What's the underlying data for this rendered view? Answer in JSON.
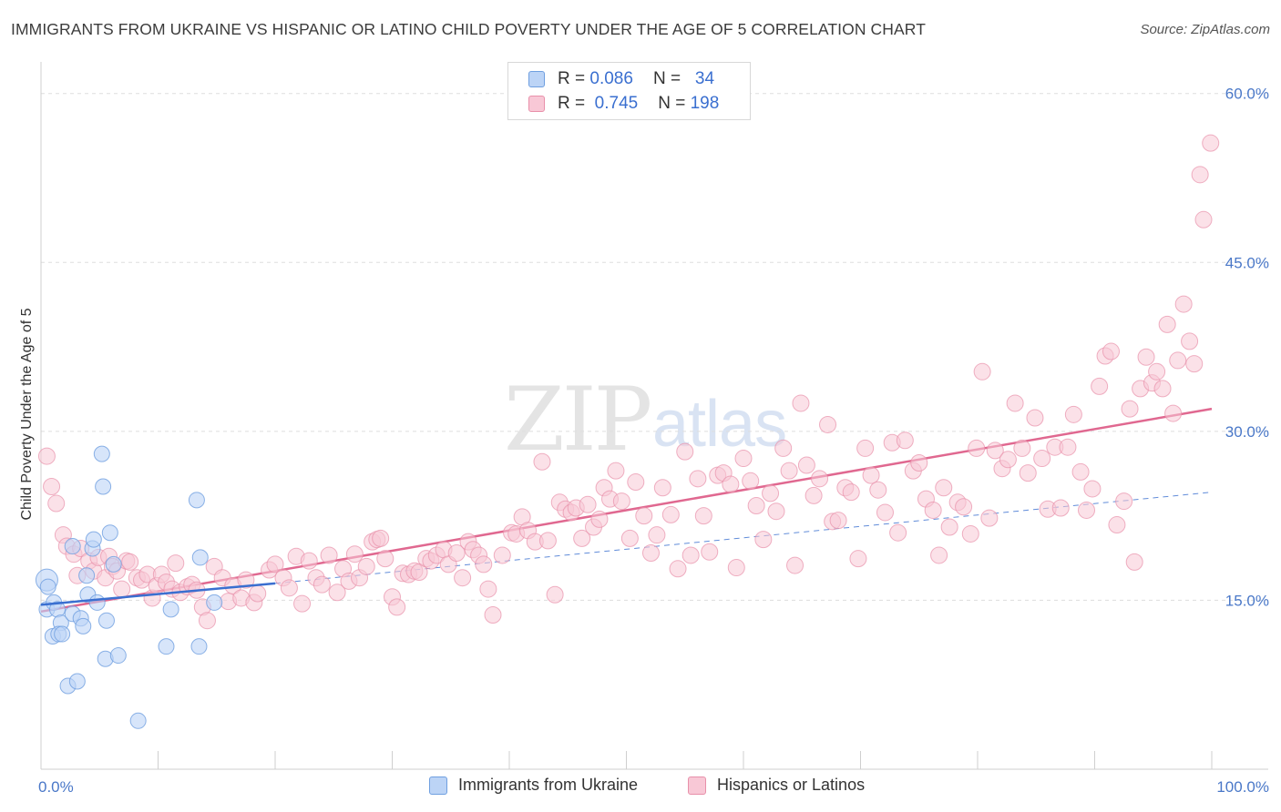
{
  "title": "IMMIGRANTS FROM UKRAINE VS HISPANIC OR LATINO CHILD POVERTY UNDER THE AGE OF 5 CORRELATION CHART",
  "source": "Source: ZipAtlas.com",
  "watermark": {
    "zip": "ZIP",
    "atlas": "atlas"
  },
  "legend": {
    "rows": [
      {
        "r_label": "R =",
        "r_value": "0.086",
        "n_label": "N =",
        "n_value": "34",
        "color": "#6f9fe0",
        "fill": "#bcd4f6"
      },
      {
        "r_label": "R =",
        "r_value": "0.745",
        "n_label": "N =",
        "n_value": "198",
        "color": "#e890aa",
        "fill": "#f8c8d6"
      }
    ]
  },
  "bottom_legend": {
    "ukraine": "Immigrants from Ukraine",
    "hispanic": "Hispanics or Latinos"
  },
  "chart_data": {
    "type": "scatter",
    "title": "IMMIGRANTS FROM UKRAINE VS HISPANIC OR LATINO CHILD POVERTY UNDER THE AGE OF 5 CORRELATION CHART",
    "xlabel": "",
    "ylabel": "Child Poverty Under the Age of 5",
    "xlim": [
      0,
      100
    ],
    "ylim": [
      0,
      62
    ],
    "x_tick_labels": [
      "0.0%",
      "100.0%"
    ],
    "y_ticks": [
      15,
      30,
      45,
      60
    ],
    "y_tick_labels": [
      "15.0%",
      "30.0%",
      "45.0%",
      "60.0%"
    ],
    "grid": true,
    "colors": {
      "ukraine": "#6f9fe0",
      "ukraine_fill": "#bcd4f6",
      "ukraine_line": "#3a6fd0",
      "hispanic": "#e890aa",
      "hispanic_fill": "#f8c8d6",
      "hispanic_line": "#e06890"
    },
    "series": [
      {
        "name": "Immigrants from Ukraine",
        "points": [
          [
            0.5,
            16.8
          ],
          [
            0.6,
            16.2
          ],
          [
            0.5,
            14.2
          ],
          [
            1.1,
            14.8
          ],
          [
            1.4,
            14.2
          ],
          [
            1.7,
            13.0
          ],
          [
            2.7,
            13.8
          ],
          [
            3.4,
            13.4
          ],
          [
            3.6,
            12.7
          ],
          [
            1.0,
            11.8
          ],
          [
            1.5,
            12.0
          ],
          [
            1.8,
            12.0
          ],
          [
            2.7,
            19.8
          ],
          [
            3.9,
            17.2
          ],
          [
            4.0,
            15.5
          ],
          [
            4.4,
            19.6
          ],
          [
            4.5,
            20.4
          ],
          [
            4.8,
            14.8
          ],
          [
            5.2,
            28.0
          ],
          [
            5.3,
            25.1
          ],
          [
            5.6,
            13.2
          ],
          [
            5.9,
            21.0
          ],
          [
            5.5,
            9.8
          ],
          [
            6.6,
            10.1
          ],
          [
            6.2,
            18.2
          ],
          [
            2.3,
            7.4
          ],
          [
            3.1,
            7.8
          ],
          [
            8.3,
            4.3
          ],
          [
            11.1,
            14.2
          ],
          [
            10.7,
            10.9
          ],
          [
            13.5,
            10.9
          ],
          [
            13.6,
            18.8
          ],
          [
            13.3,
            23.9
          ],
          [
            14.8,
            14.8
          ]
        ],
        "trend": {
          "x": [
            0,
            20
          ],
          "y": [
            14.6,
            16.5
          ]
        },
        "trend_extension": {
          "x": [
            20,
            100
          ],
          "y": [
            16.5,
            24.6
          ]
        }
      },
      {
        "name": "Hispanics or Latinos",
        "points": [
          [
            0.5,
            27.8
          ],
          [
            0.9,
            25.1
          ],
          [
            1.3,
            23.6
          ],
          [
            1.9,
            20.8
          ],
          [
            2.2,
            19.8
          ],
          [
            2.8,
            19.1
          ],
          [
            3.1,
            17.2
          ],
          [
            3.4,
            19.6
          ],
          [
            4.1,
            18.5
          ],
          [
            4.5,
            17.6
          ],
          [
            4.9,
            18.8
          ],
          [
            5.5,
            17.0
          ],
          [
            5.8,
            18.9
          ],
          [
            6.1,
            18.0
          ],
          [
            6.5,
            17.6
          ],
          [
            6.9,
            16.0
          ],
          [
            7.3,
            18.5
          ],
          [
            7.6,
            18.4
          ],
          [
            8.2,
            17.0
          ],
          [
            8.6,
            16.8
          ],
          [
            9.1,
            17.3
          ],
          [
            9.5,
            15.2
          ],
          [
            9.9,
            16.3
          ],
          [
            10.3,
            17.3
          ],
          [
            10.7,
            16.6
          ],
          [
            11.2,
            16.0
          ],
          [
            11.5,
            18.3
          ],
          [
            11.9,
            15.7
          ],
          [
            12.5,
            16.2
          ],
          [
            12.9,
            16.4
          ],
          [
            13.3,
            15.9
          ],
          [
            13.8,
            14.4
          ],
          [
            14.2,
            13.2
          ],
          [
            14.8,
            18.0
          ],
          [
            15.5,
            17.0
          ],
          [
            16.0,
            14.9
          ],
          [
            16.4,
            16.3
          ],
          [
            17.1,
            15.2
          ],
          [
            17.5,
            16.8
          ],
          [
            18.2,
            14.8
          ],
          [
            18.5,
            15.6
          ],
          [
            19.5,
            17.7
          ],
          [
            20.0,
            18.2
          ],
          [
            20.7,
            17.0
          ],
          [
            21.2,
            16.1
          ],
          [
            21.8,
            18.9
          ],
          [
            22.3,
            14.7
          ],
          [
            22.9,
            18.5
          ],
          [
            23.5,
            17.0
          ],
          [
            24.0,
            16.4
          ],
          [
            24.6,
            19.0
          ],
          [
            25.3,
            15.7
          ],
          [
            25.8,
            17.8
          ],
          [
            26.3,
            16.7
          ],
          [
            26.8,
            19.1
          ],
          [
            27.2,
            17.0
          ],
          [
            27.8,
            18.0
          ],
          [
            28.3,
            20.2
          ],
          [
            28.7,
            20.4
          ],
          [
            29.0,
            20.5
          ],
          [
            29.4,
            18.7
          ],
          [
            30.0,
            15.3
          ],
          [
            30.4,
            14.4
          ],
          [
            30.9,
            17.4
          ],
          [
            31.4,
            17.3
          ],
          [
            31.9,
            17.6
          ],
          [
            32.3,
            17.5
          ],
          [
            32.9,
            18.7
          ],
          [
            33.3,
            18.5
          ],
          [
            33.8,
            19.0
          ],
          [
            34.4,
            19.5
          ],
          [
            34.8,
            18.2
          ],
          [
            35.5,
            19.2
          ],
          [
            36.0,
            17.0
          ],
          [
            36.5,
            20.2
          ],
          [
            36.9,
            19.5
          ],
          [
            37.4,
            19.0
          ],
          [
            37.8,
            18.2
          ],
          [
            38.2,
            16.0
          ],
          [
            38.6,
            13.7
          ],
          [
            39.4,
            19.0
          ],
          [
            40.2,
            21.0
          ],
          [
            40.6,
            20.9
          ],
          [
            41.1,
            22.4
          ],
          [
            41.6,
            21.2
          ],
          [
            42.2,
            20.2
          ],
          [
            42.8,
            27.3
          ],
          [
            43.3,
            20.3
          ],
          [
            43.9,
            15.5
          ],
          [
            44.3,
            23.7
          ],
          [
            44.8,
            23.1
          ],
          [
            45.3,
            22.8
          ],
          [
            45.7,
            23.2
          ],
          [
            46.2,
            20.5
          ],
          [
            46.7,
            23.5
          ],
          [
            47.2,
            21.5
          ],
          [
            47.7,
            22.2
          ],
          [
            48.1,
            25.0
          ],
          [
            48.6,
            24.0
          ],
          [
            49.1,
            26.5
          ],
          [
            49.6,
            23.8
          ],
          [
            50.3,
            20.5
          ],
          [
            50.8,
            25.5
          ],
          [
            51.5,
            22.5
          ],
          [
            52.1,
            19.2
          ],
          [
            52.6,
            20.8
          ],
          [
            53.1,
            25.0
          ],
          [
            53.8,
            22.6
          ],
          [
            54.4,
            17.8
          ],
          [
            55.0,
            28.2
          ],
          [
            55.5,
            19.0
          ],
          [
            56.1,
            25.8
          ],
          [
            56.6,
            22.5
          ],
          [
            57.1,
            19.3
          ],
          [
            57.8,
            26.1
          ],
          [
            58.3,
            26.3
          ],
          [
            58.9,
            25.3
          ],
          [
            59.4,
            17.9
          ],
          [
            60.0,
            27.6
          ],
          [
            60.6,
            25.6
          ],
          [
            61.1,
            23.4
          ],
          [
            61.7,
            20.4
          ],
          [
            62.3,
            24.5
          ],
          [
            62.8,
            22.9
          ],
          [
            63.4,
            28.5
          ],
          [
            63.9,
            26.5
          ],
          [
            64.4,
            18.1
          ],
          [
            64.9,
            32.5
          ],
          [
            65.4,
            27.0
          ],
          [
            66.0,
            24.3
          ],
          [
            66.5,
            25.8
          ],
          [
            67.2,
            30.6
          ],
          [
            67.6,
            22.0
          ],
          [
            68.1,
            22.1
          ],
          [
            68.7,
            25.0
          ],
          [
            69.2,
            24.6
          ],
          [
            69.8,
            18.7
          ],
          [
            70.4,
            28.5
          ],
          [
            70.9,
            26.1
          ],
          [
            71.5,
            24.8
          ],
          [
            72.1,
            22.8
          ],
          [
            72.7,
            29.0
          ],
          [
            73.2,
            21.0
          ],
          [
            73.8,
            29.2
          ],
          [
            74.5,
            26.5
          ],
          [
            75.0,
            27.2
          ],
          [
            75.6,
            24.0
          ],
          [
            76.2,
            23.0
          ],
          [
            76.7,
            19.0
          ],
          [
            77.1,
            25.0
          ],
          [
            77.6,
            21.5
          ],
          [
            78.3,
            23.7
          ],
          [
            78.8,
            23.3
          ],
          [
            79.4,
            20.9
          ],
          [
            79.9,
            28.5
          ],
          [
            80.4,
            35.3
          ],
          [
            81.0,
            22.3
          ],
          [
            81.5,
            28.3
          ],
          [
            82.1,
            26.7
          ],
          [
            82.6,
            27.5
          ],
          [
            83.2,
            32.5
          ],
          [
            83.8,
            28.5
          ],
          [
            84.3,
            26.3
          ],
          [
            84.9,
            31.2
          ],
          [
            85.5,
            27.6
          ],
          [
            86.0,
            23.1
          ],
          [
            86.6,
            28.6
          ],
          [
            87.1,
            23.2
          ],
          [
            87.7,
            28.6
          ],
          [
            88.2,
            31.5
          ],
          [
            88.8,
            26.4
          ],
          [
            89.3,
            23.0
          ],
          [
            89.8,
            24.9
          ],
          [
            90.4,
            34.0
          ],
          [
            90.9,
            36.7
          ],
          [
            91.4,
            37.1
          ],
          [
            91.9,
            21.7
          ],
          [
            92.5,
            23.8
          ],
          [
            93.0,
            32.0
          ],
          [
            93.4,
            18.4
          ],
          [
            93.9,
            33.8
          ],
          [
            94.4,
            36.6
          ],
          [
            94.9,
            34.3
          ],
          [
            95.3,
            35.3
          ],
          [
            95.8,
            33.8
          ],
          [
            96.2,
            39.5
          ],
          [
            96.7,
            31.6
          ],
          [
            97.1,
            36.3
          ],
          [
            97.6,
            41.3
          ],
          [
            98.1,
            38.0
          ],
          [
            98.5,
            36.0
          ],
          [
            99.0,
            52.8
          ],
          [
            99.3,
            48.8
          ],
          [
            99.9,
            55.6
          ]
        ],
        "trend": {
          "x": [
            0,
            100
          ],
          "y": [
            14.0,
            32.0
          ]
        }
      }
    ]
  }
}
